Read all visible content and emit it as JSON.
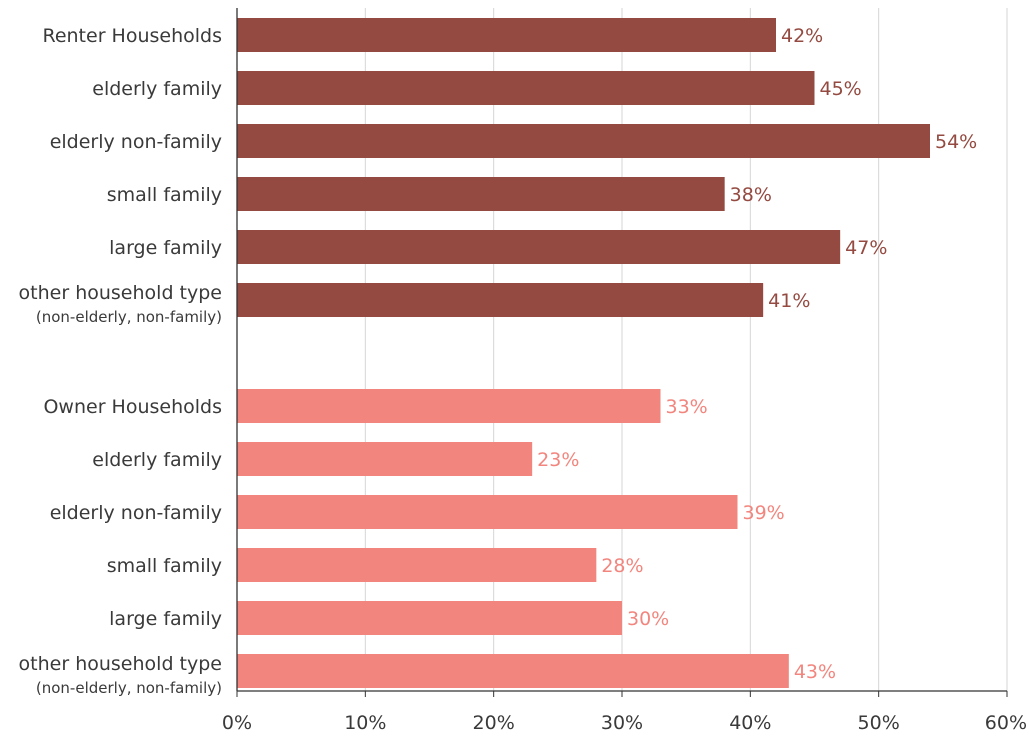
{
  "chart_data": {
    "type": "bar",
    "orientation": "horizontal",
    "groups": [
      {
        "name": "Renter Households",
        "color": "#944a40",
        "items": [
          {
            "label": "Renter Households",
            "sublabel": "",
            "value": 42,
            "value_label": "42%"
          },
          {
            "label": "elderly family",
            "sublabel": "",
            "value": 45,
            "value_label": "45%"
          },
          {
            "label": "elderly non-family",
            "sublabel": "",
            "value": 54,
            "value_label": "54%"
          },
          {
            "label": "small family",
            "sublabel": "",
            "value": 38,
            "value_label": "38%"
          },
          {
            "label": "large family",
            "sublabel": "",
            "value": 47,
            "value_label": "47%"
          },
          {
            "label": "other household type",
            "sublabel": "(non-elderly, non-family)",
            "value": 41,
            "value_label": "41%"
          }
        ]
      },
      {
        "name": "Owner Households",
        "color": "#f2867e",
        "items": [
          {
            "label": "Owner Households",
            "sublabel": "",
            "value": 33,
            "value_label": "33%"
          },
          {
            "label": "elderly family",
            "sublabel": "",
            "value": 23,
            "value_label": "23%"
          },
          {
            "label": "elderly non-family",
            "sublabel": "",
            "value": 39,
            "value_label": "39%"
          },
          {
            "label": "small family",
            "sublabel": "",
            "value": 28,
            "value_label": "28%"
          },
          {
            "label": "large family",
            "sublabel": "",
            "value": 30,
            "value_label": "30%"
          },
          {
            "label": "other household type",
            "sublabel": "(non-elderly, non-family)",
            "value": 43,
            "value_label": "43%"
          }
        ]
      }
    ],
    "xlim": [
      0,
      60
    ],
    "x_ticks": [
      0,
      10,
      20,
      30,
      40,
      50,
      60
    ],
    "x_tick_labels": [
      "0%",
      "10%",
      "20%",
      "30%",
      "40%",
      "50%",
      "60%"
    ],
    "grid": true,
    "title": "",
    "xlabel": "",
    "ylabel": ""
  }
}
